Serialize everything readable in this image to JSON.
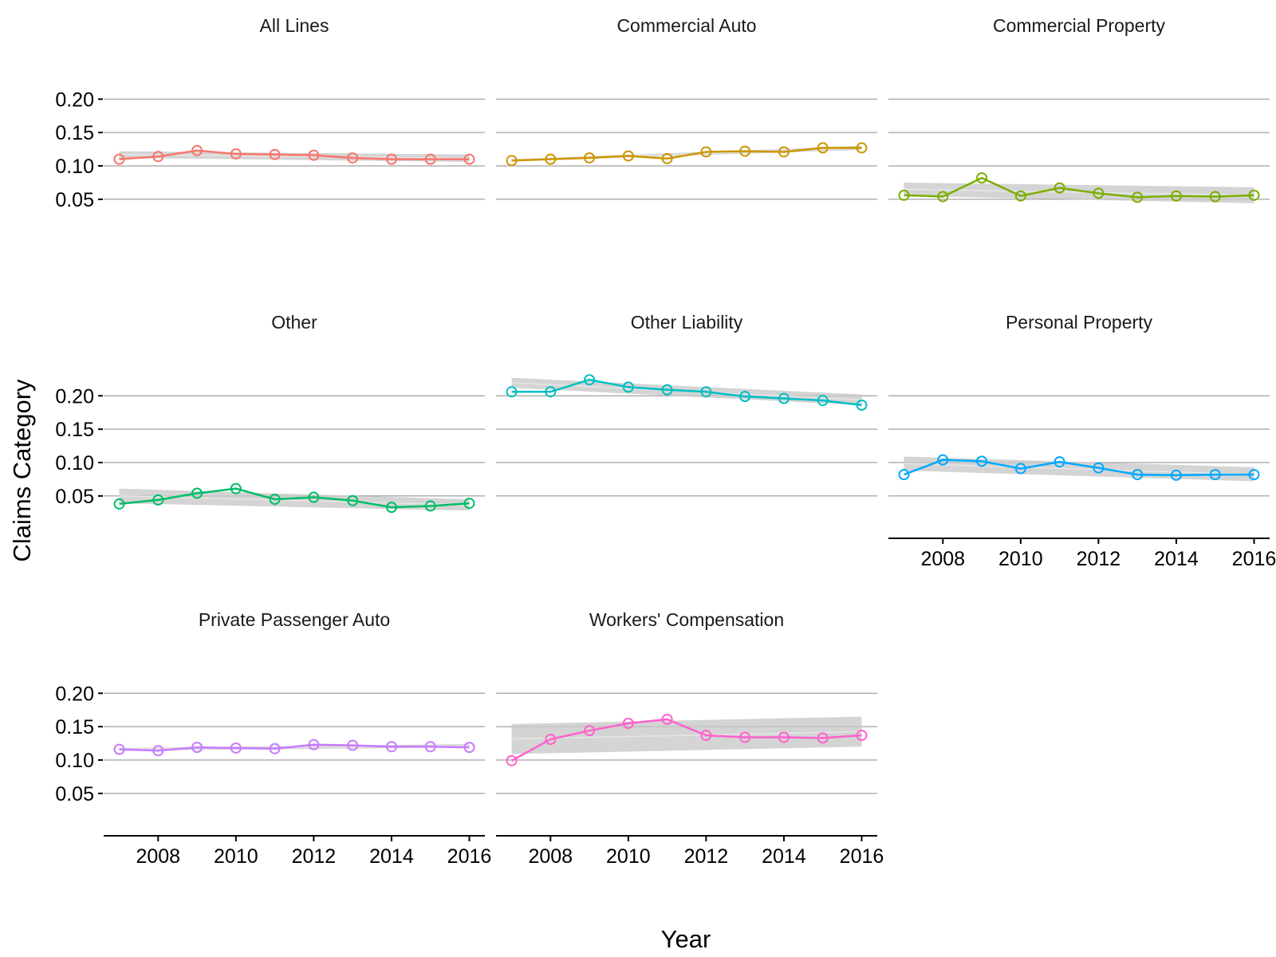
{
  "chart_data": {
    "type": "line",
    "xlabel": "Year",
    "ylabel": "Claims Category",
    "xlim": [
      2006.6,
      2016.4
    ],
    "ylim": [
      0.02,
      0.235
    ],
    "x_ticks": [
      2008,
      2010,
      2012,
      2014,
      2016
    ],
    "y_ticks": [
      0.05,
      0.1,
      0.15,
      0.2
    ],
    "y_tick_labels": [
      "0.05",
      "0.10",
      "0.15",
      "0.20"
    ],
    "x": [
      2007,
      2008,
      2009,
      2010,
      2011,
      2012,
      2013,
      2014,
      2015,
      2016
    ],
    "grid": "horizontal-major",
    "smoother": "linear trend with confidence band",
    "facets": [
      {
        "name": "All Lines",
        "color": "#F8766D",
        "values": [
          0.11,
          0.114,
          0.123,
          0.118,
          0.117,
          0.116,
          0.112,
          0.11,
          0.11,
          0.11
        ],
        "band": {
          "lower": [
            0.112,
            0.106
          ],
          "upper": [
            0.122,
            0.117
          ]
        }
      },
      {
        "name": "Commercial Auto",
        "color": "#CD9600",
        "values": [
          0.108,
          0.11,
          0.112,
          0.115,
          0.111,
          0.121,
          0.122,
          0.121,
          0.127,
          0.127
        ],
        "band": {
          "lower": [
            0.107,
            0.124
          ],
          "upper": [
            0.11,
            0.13
          ]
        }
      },
      {
        "name": "Commercial Property",
        "color": "#7CAE00",
        "values": [
          0.056,
          0.054,
          0.082,
          0.055,
          0.067,
          0.059,
          0.053,
          0.055,
          0.054,
          0.056
        ],
        "band": {
          "lower": [
            0.055,
            0.044
          ],
          "upper": [
            0.075,
            0.068
          ]
        }
      },
      {
        "name": "Other",
        "color": "#00BE67",
        "values": [
          0.038,
          0.044,
          0.054,
          0.061,
          0.045,
          0.048,
          0.043,
          0.033,
          0.035,
          0.039
        ],
        "band": {
          "lower": [
            0.039,
            0.028
          ],
          "upper": [
            0.061,
            0.045
          ]
        }
      },
      {
        "name": "Other Liability",
        "color": "#00BFC4",
        "values": [
          0.206,
          0.206,
          0.224,
          0.213,
          0.209,
          0.206,
          0.199,
          0.196,
          0.193,
          0.186
        ],
        "band": {
          "lower": [
            0.212,
            0.186
          ],
          "upper": [
            0.227,
            0.202
          ]
        }
      },
      {
        "name": "Personal Property",
        "color": "#00A9FF",
        "values": [
          0.082,
          0.104,
          0.102,
          0.091,
          0.101,
          0.092,
          0.082,
          0.081,
          0.082,
          0.082
        ],
        "band": {
          "lower": [
            0.088,
            0.072
          ],
          "upper": [
            0.109,
            0.093
          ]
        }
      },
      {
        "name": "Private Passenger Auto",
        "color": "#C77CFF",
        "values": [
          0.116,
          0.114,
          0.119,
          0.118,
          0.117,
          0.123,
          0.122,
          0.12,
          0.12,
          0.119
        ],
        "band": {
          "lower": [
            0.114,
            0.119
          ],
          "upper": [
            0.118,
            0.124
          ]
        }
      },
      {
        "name": "Workers' Compensation",
        "color": "#FF61CC",
        "values": [
          0.099,
          0.131,
          0.144,
          0.155,
          0.161,
          0.137,
          0.134,
          0.134,
          0.133,
          0.137
        ],
        "band": {
          "lower": [
            0.109,
            0.12
          ],
          "upper": [
            0.154,
            0.165
          ]
        }
      }
    ]
  }
}
